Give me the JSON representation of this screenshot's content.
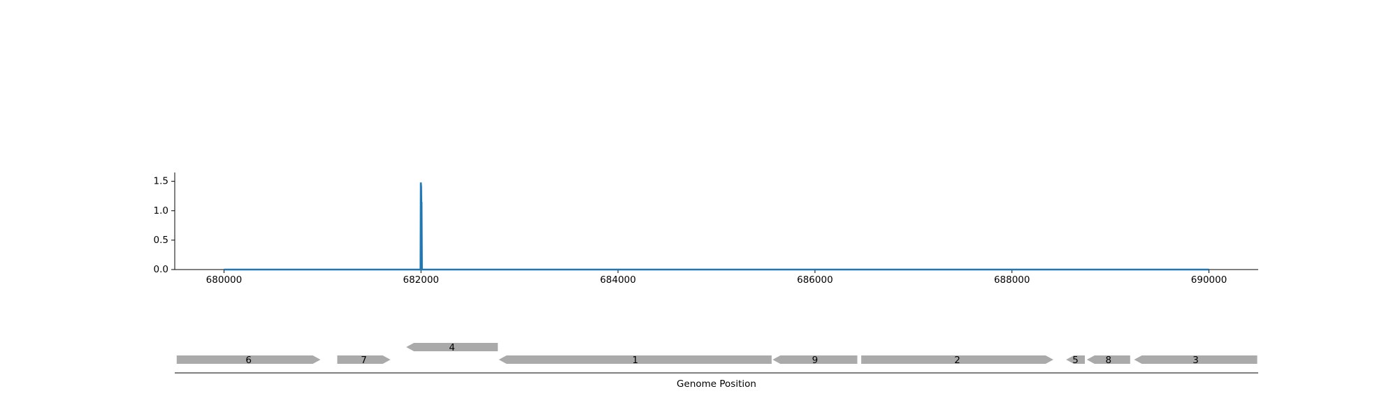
{
  "chart_data": [
    {
      "type": "line",
      "title": "",
      "xlabel": "",
      "ylabel": "",
      "xlim": [
        679500,
        690500
      ],
      "ylim": [
        0,
        1.65
      ],
      "x_ticks": [
        680000,
        682000,
        684000,
        686000,
        688000,
        690000
      ],
      "x_tick_labels": [
        "680000",
        "682000",
        "684000",
        "686000",
        "688000",
        "690000"
      ],
      "y_ticks": [
        0,
        0.5,
        1,
        1.5
      ],
      "y_tick_labels": [
        "0.0",
        "0.5",
        "1.0",
        "1.5"
      ],
      "grid": false,
      "color": "#1f77b4",
      "series": [
        {
          "x": [
            680000,
            681995,
            681998,
            682000,
            682002,
            682004,
            682006,
            682010,
            690000
          ],
          "y": [
            0,
            0,
            1.48,
            1.45,
            1.4,
            1.1,
            1.15,
            0,
            0
          ]
        }
      ]
    },
    {
      "type": "gene-map",
      "xlabel": "Genome Position",
      "xlim": [
        679500,
        690500
      ],
      "color": "#aaaaaa",
      "genes": [
        {
          "label": "6",
          "start": 679520,
          "end": 680980,
          "strand": "+",
          "row": 0
        },
        {
          "label": "7",
          "start": 681150,
          "end": 681690,
          "strand": "+",
          "row": 0
        },
        {
          "label": "4",
          "start": 681850,
          "end": 682780,
          "strand": "-",
          "row": 1
        },
        {
          "label": "1",
          "start": 682790,
          "end": 685560,
          "strand": "-",
          "row": 0
        },
        {
          "label": "9",
          "start": 685570,
          "end": 686430,
          "strand": "-",
          "row": 0
        },
        {
          "label": "2",
          "start": 686470,
          "end": 688420,
          "strand": "+",
          "row": 0
        },
        {
          "label": "5",
          "start": 688550,
          "end": 688740,
          "strand": "-",
          "row": 0
        },
        {
          "label": "8",
          "start": 688760,
          "end": 689200,
          "strand": "-",
          "row": 0
        },
        {
          "label": "3",
          "start": 689240,
          "end": 690490,
          "strand": "-",
          "row": 0
        }
      ]
    }
  ]
}
